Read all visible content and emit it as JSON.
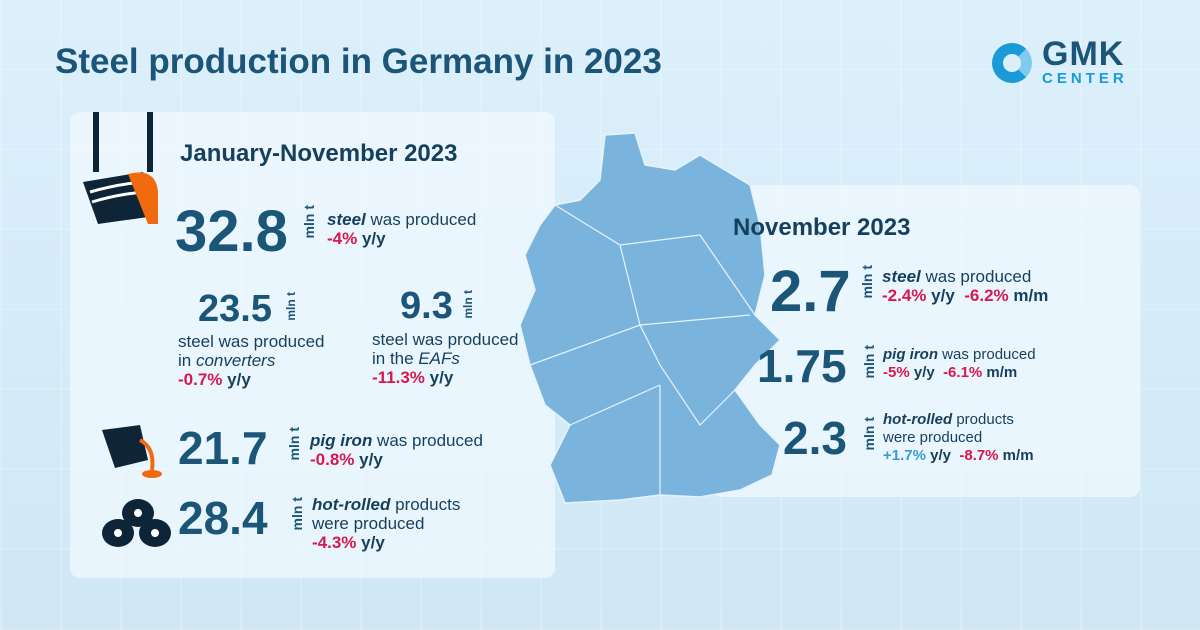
{
  "title": "Steel production in Germany in 2023",
  "logo": {
    "line1": "GMK",
    "line2": "CENTER"
  },
  "unit": "mln t",
  "ytd": {
    "heading": "January-November 2023",
    "steel": {
      "value": "32.8",
      "label_em": "steel",
      "label": " was produced",
      "yy": "-4%",
      "yy_unit": " y/y"
    },
    "converters": {
      "value": "23.5",
      "line1": "steel was produced",
      "line2_pre": "in ",
      "line2_em": "converters",
      "yy": "-0.7%",
      "yy_unit": " y/y"
    },
    "eafs": {
      "value": "9.3",
      "line1": "steel was produced",
      "line2_pre": "in the ",
      "line2_em": "EAFs",
      "yy": "-11.3%",
      "yy_unit": " y/y"
    },
    "pig_iron": {
      "value": "21.7",
      "label_em": "pig iron",
      "label": " was produced",
      "yy": "-0.8%",
      "yy_unit": " y/y"
    },
    "hot_rolled": {
      "value": "28.4",
      "label_em": "hot-rolled",
      "label": " products",
      "line2": "were produced",
      "yy": "-4.3%",
      "yy_unit": " y/y"
    }
  },
  "month": {
    "heading": "November 2023",
    "steel": {
      "value": "2.7",
      "label_em": "steel",
      "label": " was produced",
      "yy": "-2.4%",
      "yy_unit": " y/y",
      "mm": "-6.2%",
      "mm_unit": " m/m"
    },
    "pig_iron": {
      "value": "1.75",
      "label_em": "pig iron",
      "label": " was produced",
      "yy": "-5%",
      "yy_unit": " y/y",
      "mm": "-6.1%",
      "mm_unit": " m/m"
    },
    "hot_rolled": {
      "value": "2.3",
      "label_em": "hot-rolled",
      "label": " products",
      "line2": "were produced",
      "yy": "+1.7%",
      "yy_unit": " y/y",
      "mm": "-8.7%",
      "mm_unit": " m/m"
    }
  },
  "colors": {
    "negative": "#d6184f",
    "positive": "#3b9ad6",
    "primary": "#1b5578"
  }
}
